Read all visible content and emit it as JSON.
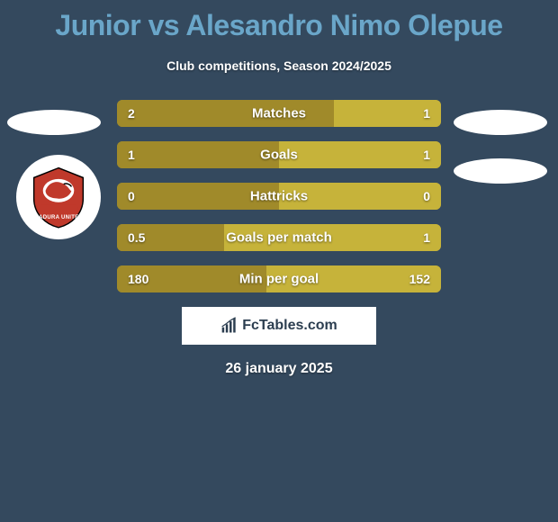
{
  "title": "Junior vs Alesandro Nimo Olepue",
  "subtitle": "Club competitions, Season 2024/2025",
  "date": "26 january 2025",
  "footer_brand": "FcTables.com",
  "colors": {
    "background": "#34495e",
    "title": "#6aa6c9",
    "text_light": "#ffffff",
    "bar_left": "#a08a2a",
    "bar_right": "#c6b33a",
    "banner_bg": "#ffffff",
    "banner_text": "#2c3e50"
  },
  "bars": [
    {
      "label": "Matches",
      "left_val": "2",
      "right_val": "1",
      "left_pct": 67,
      "right_pct": 33
    },
    {
      "label": "Goals",
      "left_val": "1",
      "right_val": "1",
      "left_pct": 50,
      "right_pct": 50
    },
    {
      "label": "Hattricks",
      "left_val": "0",
      "right_val": "0",
      "left_pct": 50,
      "right_pct": 50
    },
    {
      "label": "Goals per match",
      "left_val": "0.5",
      "right_val": "1",
      "left_pct": 33,
      "right_pct": 67
    },
    {
      "label": "Min per goal",
      "left_val": "180",
      "right_val": "152",
      "left_pct": 46,
      "right_pct": 54
    }
  ],
  "badge_text": "MADURA UNITED"
}
